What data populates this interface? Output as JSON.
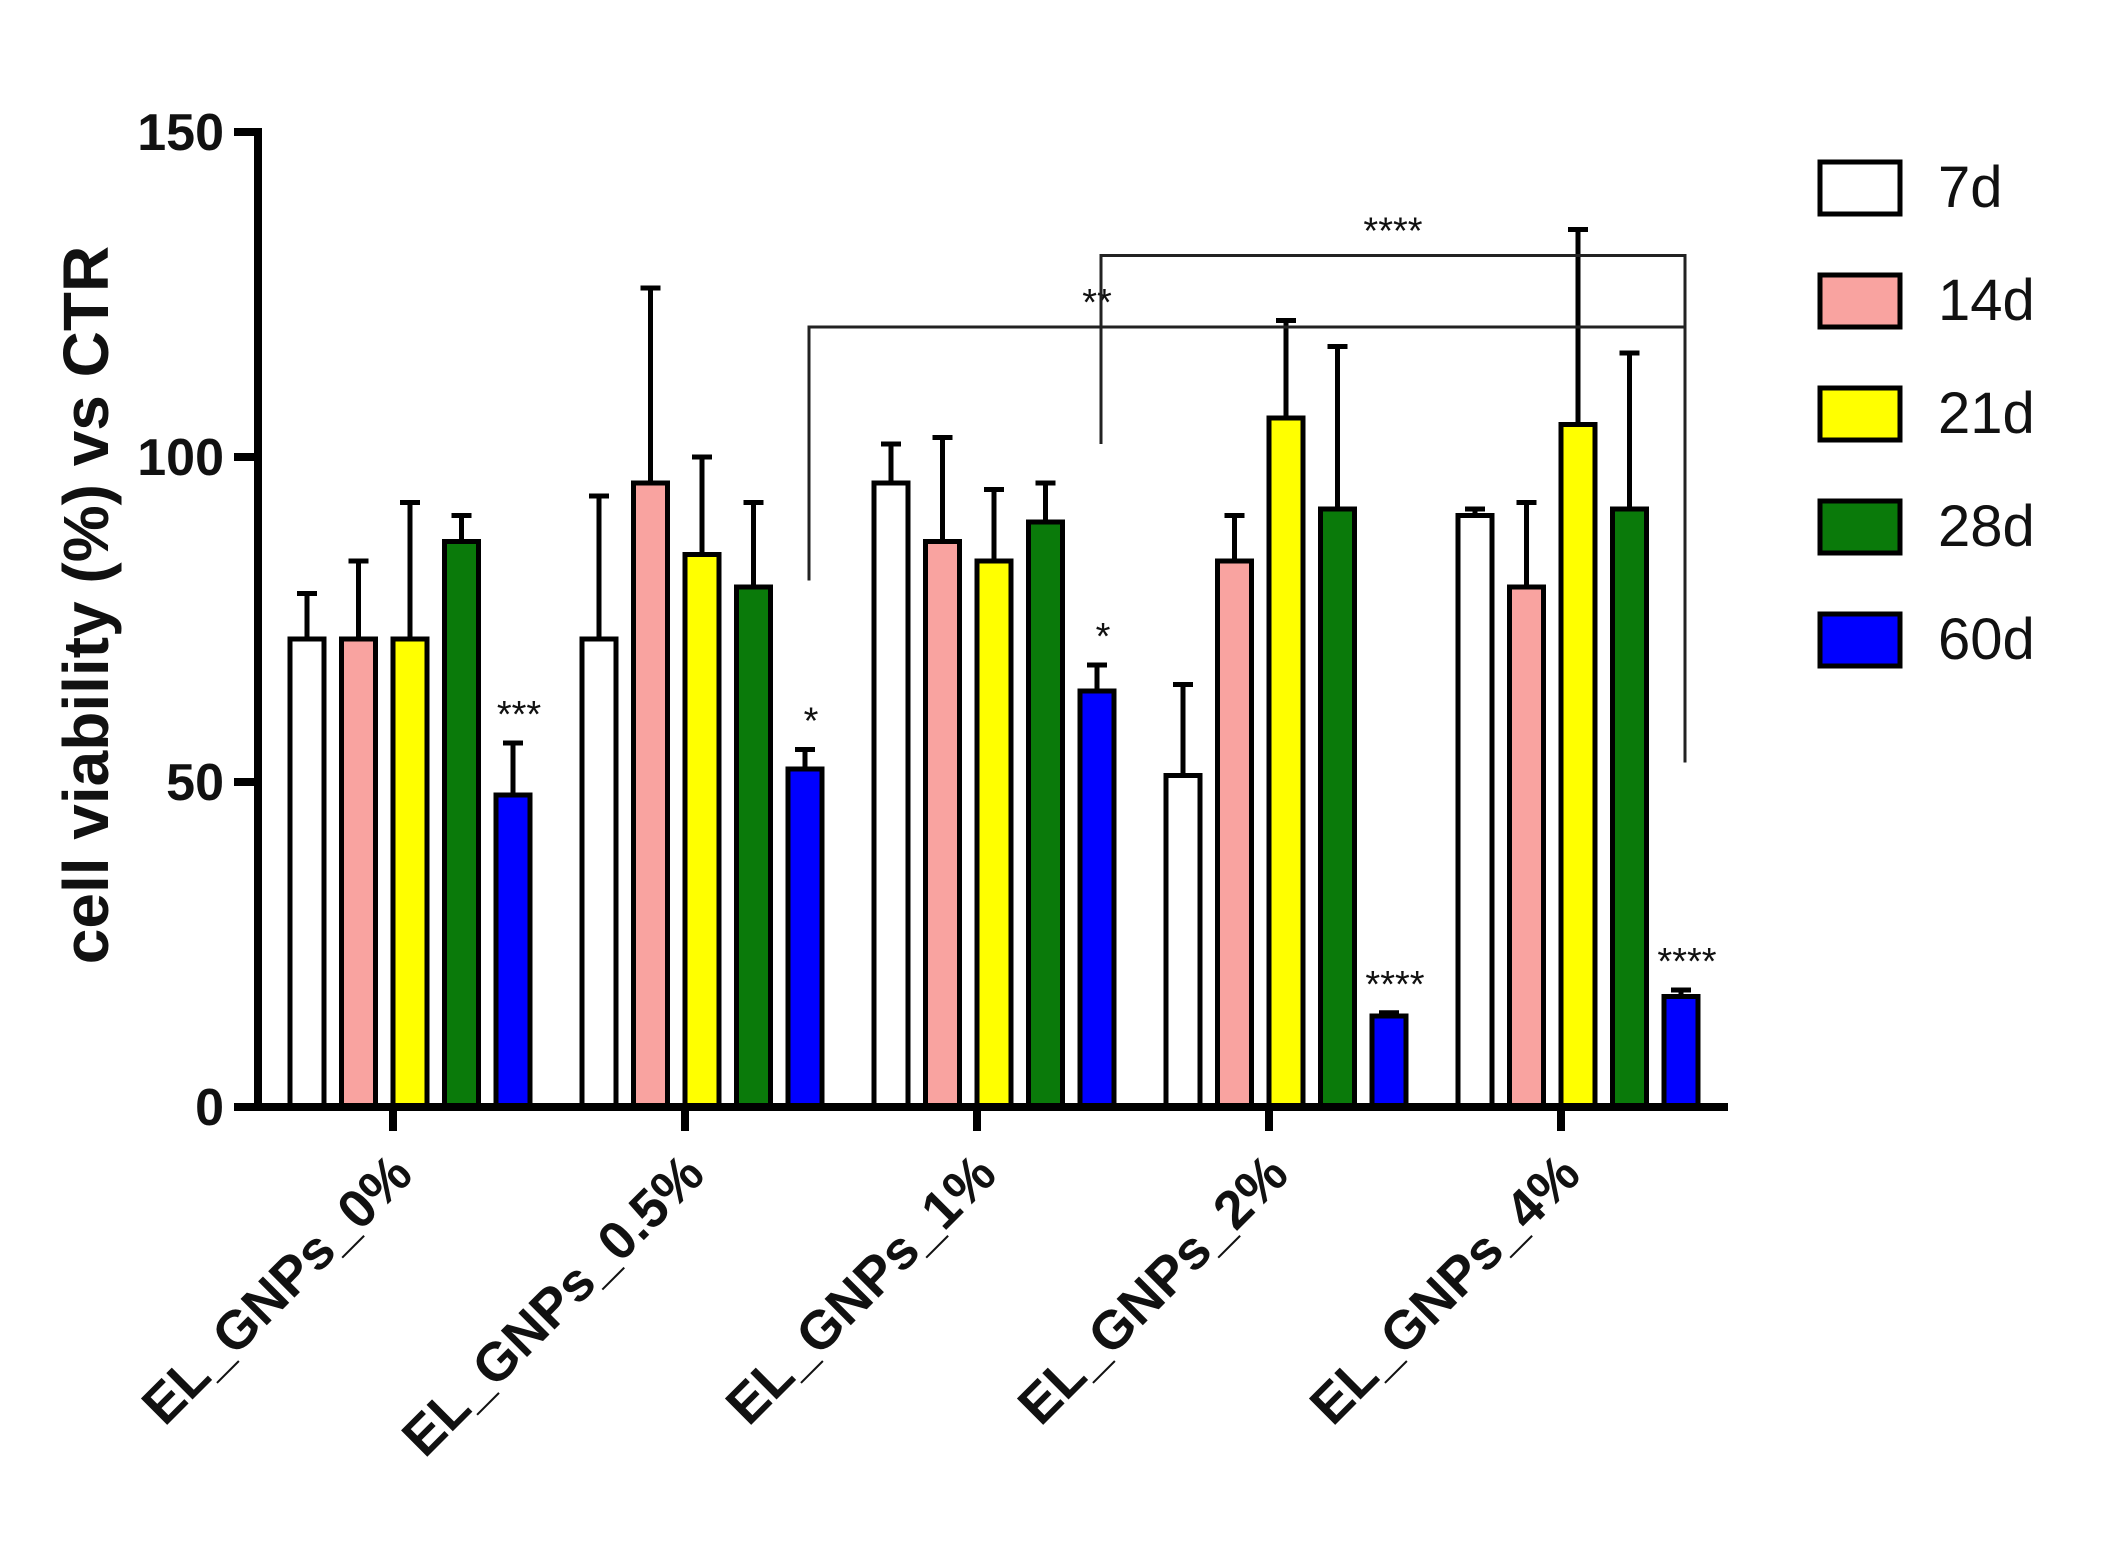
{
  "chart_data": {
    "type": "bar",
    "ylabel": "cell viability (%) vs CTR",
    "ylim": [
      0,
      150
    ],
    "yticks": [
      0,
      50,
      100,
      150
    ],
    "categories": [
      "EL_GNPs_0%",
      "EL_GNPs_0.5%",
      "EL_GNPs_1%",
      "EL_GNPs_2%",
      "EL_GNPs_4%"
    ],
    "series": [
      {
        "name": "7d",
        "color": "#ffffff",
        "values": [
          72,
          72,
          96,
          51,
          91
        ],
        "errors": [
          7,
          22,
          6,
          14,
          1
        ]
      },
      {
        "name": "14d",
        "color": "#f9a3a0",
        "values": [
          72,
          96,
          87,
          84,
          80
        ],
        "errors": [
          12,
          30,
          16,
          7,
          13
        ]
      },
      {
        "name": "21d",
        "color": "#ffff00",
        "values": [
          72,
          85,
          84,
          106,
          105
        ],
        "errors": [
          21,
          15,
          11,
          15,
          30
        ]
      },
      {
        "name": "28d",
        "color": "#0a7a0a",
        "values": [
          87,
          80,
          90,
          92,
          92
        ],
        "errors": [
          4,
          13,
          6,
          25,
          24
        ]
      },
      {
        "name": "60d",
        "color": "#0000ff",
        "values": [
          48,
          52,
          64,
          14,
          17
        ],
        "errors": [
          8,
          3,
          4,
          0.5,
          1
        ]
      }
    ],
    "bar_annotations": [
      {
        "category": 0,
        "series": 4,
        "text": "***"
      },
      {
        "category": 1,
        "series": 4,
        "text": "*"
      },
      {
        "category": 2,
        "series": 4,
        "text": "*"
      },
      {
        "category": 3,
        "series": 4,
        "text": "****"
      },
      {
        "category": 4,
        "series": 4,
        "text": "****"
      }
    ],
    "comparisons": [
      {
        "from_category": 1,
        "from_series": 4,
        "to_category": 4,
        "to_series": 4,
        "level": 120,
        "from_drop": 81,
        "to_drop": 53,
        "text": "**"
      },
      {
        "from_category": 2,
        "from_series": 4,
        "to_category": 4,
        "to_series": 4,
        "level": 131,
        "from_drop": 102,
        "to_drop": 120,
        "text": "****"
      }
    ],
    "legend_position": "right"
  }
}
